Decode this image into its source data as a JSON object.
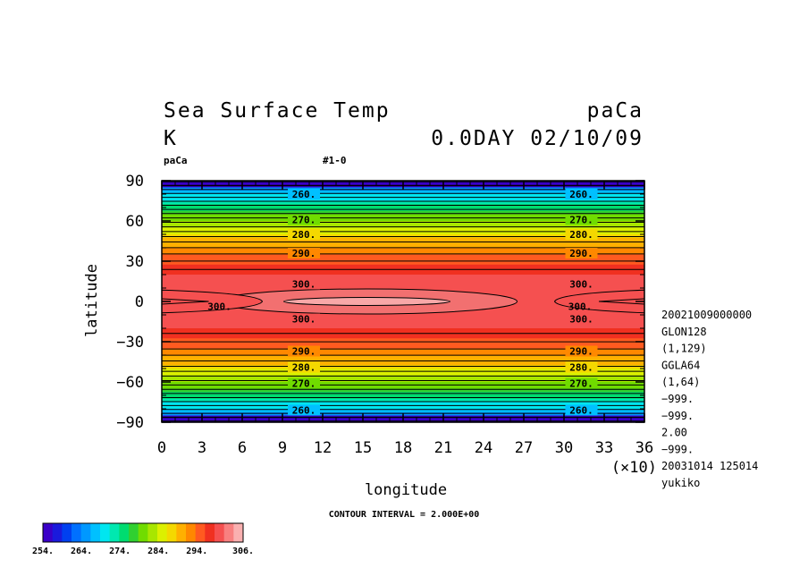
{
  "chart_data": {
    "type": "heatmap",
    "title_left": [
      "Sea Surface Temp",
      "K"
    ],
    "title_right": [
      "paCa",
      "0.0DAY 02/10/09"
    ],
    "tag_left": "paCa",
    "tag_mid": "#1-0",
    "xlabel": "longitude",
    "ylabel": "latitude",
    "x_scale_note": "(×10)",
    "xlim": [
      0,
      36
    ],
    "ylim": [
      -90,
      90
    ],
    "x_ticks": [
      "0",
      "3",
      "6",
      "9",
      "12",
      "15",
      "18",
      "21",
      "24",
      "27",
      "30",
      "33",
      "36"
    ],
    "y_ticks": [
      "90",
      "60",
      "30",
      "0",
      "−30",
      "−60",
      "−90"
    ],
    "contour_interval_text": "CONTOUR INTERVAL = 2.000E+00",
    "colorbar_labels": [
      "254.",
      "264.",
      "274.",
      "284.",
      "294.",
      "306."
    ],
    "colorbar_range": [
      254,
      306
    ],
    "contour_labels": [
      {
        "value": "260.",
        "lat": 80
      },
      {
        "value": "270.",
        "lat": 61
      },
      {
        "value": "280.",
        "lat": 50
      },
      {
        "value": "290.",
        "lat": 36
      },
      {
        "value": "300.",
        "lat": 13
      },
      {
        "value": "300.",
        "lat": -13
      },
      {
        "value": "290.",
        "lat": -37
      },
      {
        "value": "280.",
        "lat": -49
      },
      {
        "value": "270.",
        "lat": -61
      },
      {
        "value": "260.",
        "lat": -81
      }
    ],
    "warm_pool_label": "300.",
    "metadata_lines": [
      "20021009000000",
      "GLON128",
      "(1,129)",
      "GGLA64",
      "(1,64)",
      "−999.",
      "−999.",
      "2.00",
      "−999.",
      "20031014 125014",
      "yukiko"
    ]
  }
}
